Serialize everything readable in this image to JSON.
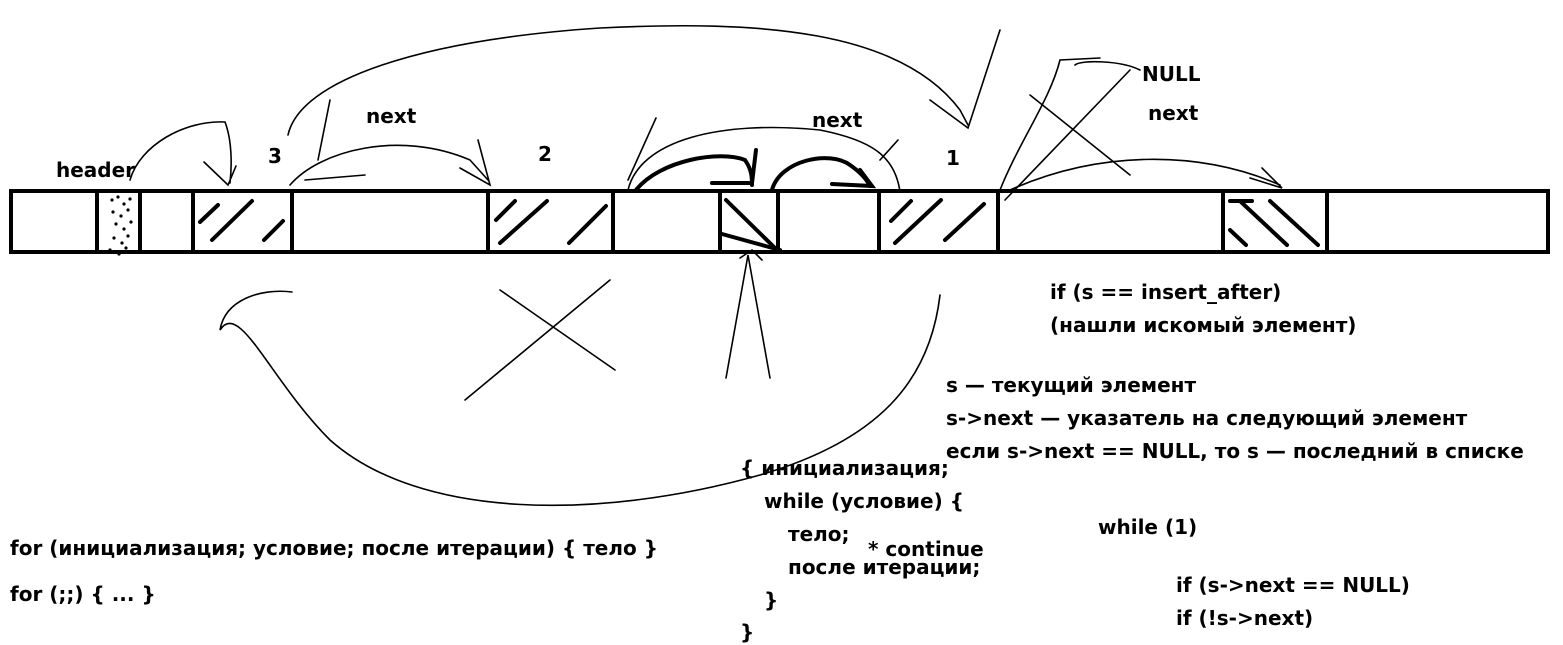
{
  "labels": {
    "header": "header",
    "node3": "3",
    "node2": "2",
    "node1": "1",
    "next_left": "next",
    "next_mid": "next",
    "next_right": "next",
    "null_label": "NULL"
  },
  "notes": {
    "if_insert": "if (s == insert_after)",
    "found": "(нашли искомый элемент)",
    "s_current": "s — текущий элемент",
    "s_next": "s->next — указатель на следующий элемент",
    "if_last": "если s->next == NULL, то s — последний в списке",
    "while_one": "while (1)",
    "if_null": "if (s->next == NULL)",
    "if_not": "if (!s->next)",
    "for_full": "for (инициализация; условие; после итерации) { тело }",
    "for_empty": "for (;;) { ... }",
    "block_open": "{ инициализация;",
    "while_cond": "while (условие) {",
    "body": "тело;",
    "continue": "* continue",
    "after_iter": "после итерации;",
    "close_inner": "}",
    "close_outer": "}"
  },
  "colors": {
    "ink": "#000000",
    "background": "#ffffff"
  }
}
